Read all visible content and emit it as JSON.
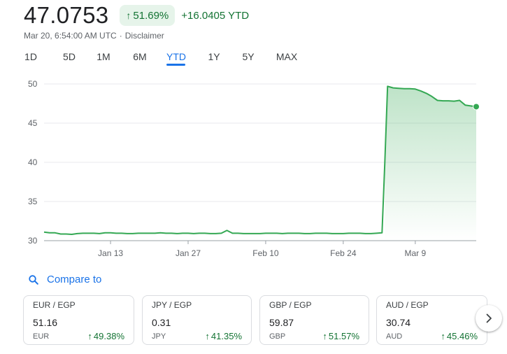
{
  "quote": {
    "price": "47.0753",
    "pct_change": "51.69%",
    "ytd_change": "+16.0405 YTD",
    "timestamp": "Mar 20, 6:54:00 AM UTC",
    "disclaimer": "Disclaimer",
    "accent_color": "#137333",
    "badge_bg": "#e6f4ea"
  },
  "ranges": [
    {
      "label": "1D",
      "active": false
    },
    {
      "label": "5D",
      "active": false
    },
    {
      "label": "1M",
      "active": false
    },
    {
      "label": "6M",
      "active": false
    },
    {
      "label": "YTD",
      "active": true
    },
    {
      "label": "1Y",
      "active": false
    },
    {
      "label": "5Y",
      "active": false
    },
    {
      "label": "MAX",
      "active": false
    }
  ],
  "chart_data": {
    "type": "area",
    "title": "",
    "xlabel": "",
    "ylabel": "",
    "ylim": [
      30,
      50
    ],
    "yticks": [
      30,
      35,
      40,
      45,
      50
    ],
    "grid": true,
    "line_color": "#34a853",
    "x_ticks": [
      {
        "label": "Jan 13",
        "day": 13
      },
      {
        "label": "Jan 27",
        "day": 27
      },
      {
        "label": "Feb 10",
        "day": 41
      },
      {
        "label": "Feb 24",
        "day": 55
      },
      {
        "label": "Mar 9",
        "day": 68
      }
    ],
    "x_range_days": [
      1,
      79
    ],
    "series": [
      {
        "x": [
          1,
          2,
          3,
          4,
          5,
          6,
          7,
          8,
          9,
          10,
          11,
          12,
          13,
          14,
          15,
          16,
          17,
          18,
          19,
          20,
          21,
          22,
          23,
          24,
          25,
          26,
          27,
          28,
          29,
          30,
          31,
          32,
          33,
          34,
          35,
          36,
          37,
          38,
          39,
          40,
          41,
          42,
          43,
          44,
          45,
          46,
          47,
          48,
          49,
          50,
          51,
          52,
          53,
          54,
          55,
          56,
          57,
          58,
          59,
          60,
          61,
          62,
          62.5,
          63,
          64,
          65,
          66,
          67,
          68,
          69,
          70,
          71,
          72,
          73,
          74,
          75,
          76,
          77,
          78,
          79
        ],
        "y": [
          31.1,
          31.0,
          31.0,
          30.85,
          30.85,
          30.8,
          30.9,
          30.95,
          30.95,
          30.95,
          30.9,
          31.0,
          31.0,
          30.95,
          30.95,
          30.9,
          30.9,
          30.95,
          30.95,
          30.95,
          30.95,
          31.0,
          30.95,
          30.95,
          30.9,
          30.95,
          30.95,
          30.9,
          30.95,
          30.95,
          30.9,
          30.9,
          30.95,
          31.3,
          30.95,
          30.95,
          30.9,
          30.9,
          30.9,
          30.9,
          30.95,
          30.95,
          30.95,
          30.9,
          30.95,
          30.95,
          30.95,
          30.9,
          30.9,
          30.95,
          30.95,
          30.95,
          30.9,
          30.9,
          30.9,
          30.95,
          30.95,
          30.95,
          30.9,
          30.9,
          30.95,
          31.0,
          40.0,
          49.7,
          49.5,
          49.45,
          49.4,
          49.4,
          49.35,
          49.1,
          48.8,
          48.4,
          47.9,
          47.85,
          47.85,
          47.8,
          47.9,
          47.3,
          47.2,
          47.1
        ]
      }
    ]
  },
  "compare": {
    "label": "Compare to"
  },
  "cards": [
    {
      "pair": "EUR / EGP",
      "value": "51.16",
      "code": "EUR",
      "change": "49.38%"
    },
    {
      "pair": "JPY / EGP",
      "value": "0.31",
      "code": "JPY",
      "change": "41.35%"
    },
    {
      "pair": "GBP / EGP",
      "value": "59.87",
      "code": "GBP",
      "change": "51.57%"
    },
    {
      "pair": "AUD / EGP",
      "value": "30.74",
      "code": "AUD",
      "change": "45.46%"
    }
  ],
  "icons": {
    "up_arrow": "arrow-up-icon",
    "search": "search-icon",
    "next": "chevron-right-icon"
  }
}
